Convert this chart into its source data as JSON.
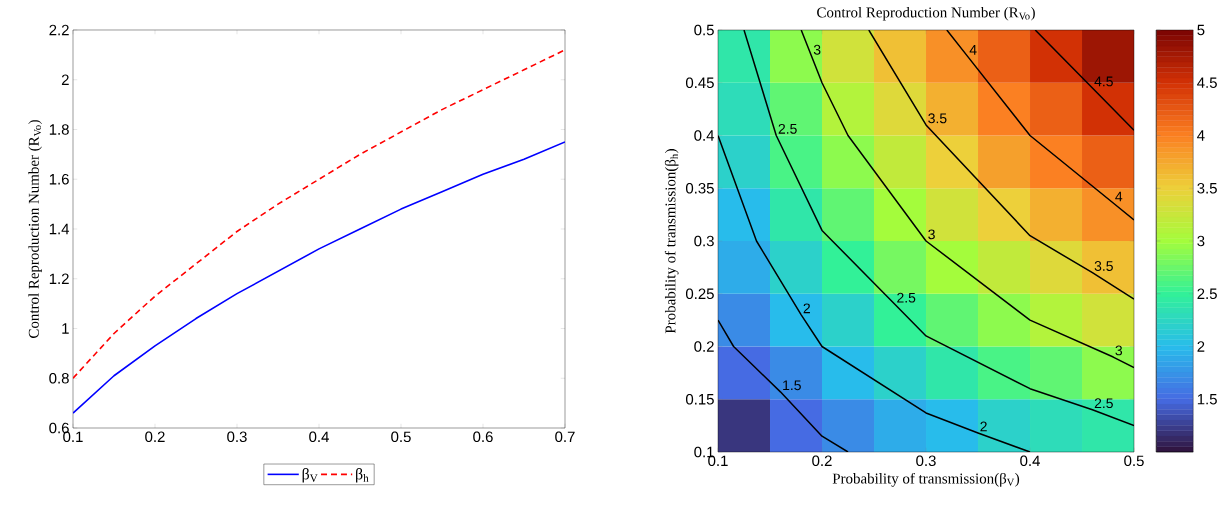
{
  "chart_data": [
    {
      "type": "line",
      "ylabel": "Control Reproduction Number (R$_{Vo}$)",
      "x": [
        0.1,
        0.15,
        0.2,
        0.25,
        0.3,
        0.35,
        0.4,
        0.45,
        0.5,
        0.55,
        0.6,
        0.65,
        0.7
      ],
      "series": [
        {
          "name": "β$_{V}$",
          "color": "#0000ff",
          "line_style": "solid",
          "values": [
            0.66,
            0.81,
            0.93,
            1.04,
            1.14,
            1.23,
            1.32,
            1.4,
            1.48,
            1.55,
            1.62,
            1.68,
            1.75
          ]
        },
        {
          "name": "β$_{h}$",
          "color": "#ff0000",
          "line_style": "dashed",
          "values": [
            0.8,
            0.98,
            1.13,
            1.26,
            1.39,
            1.5,
            1.6,
            1.7,
            1.79,
            1.88,
            1.96,
            2.04,
            2.12
          ]
        }
      ],
      "xlim": [
        0.1,
        0.7
      ],
      "ylim": [
        0.6,
        2.2
      ],
      "xticks": [
        0.1,
        0.2,
        0.3,
        0.4,
        0.5,
        0.6,
        0.7
      ],
      "yticks": [
        0.6,
        0.8,
        1,
        1.2,
        1.4,
        1.6,
        1.8,
        2,
        2.2
      ],
      "legend": "bottom",
      "grid": false
    },
    {
      "type": "heatmap",
      "title": "Control Reproduction Number (R$_{Vo}$)",
      "xlabel": "Probability of transmission(β$_{V}$)",
      "ylabel": "Probability of transmission(β$_{h}$)",
      "x": [
        0.125,
        0.175,
        0.225,
        0.275,
        0.325,
        0.375,
        0.425,
        0.475
      ],
      "y": [
        0.475,
        0.425,
        0.375,
        0.325,
        0.275,
        0.225,
        0.175,
        0.125
      ],
      "cells": [
        [
          2.4,
          2.9,
          3.3,
          3.6,
          3.9,
          4.2,
          4.5,
          4.8
        ],
        [
          2.3,
          2.7,
          3.1,
          3.4,
          3.7,
          4.0,
          4.2,
          4.5
        ],
        [
          2.2,
          2.6,
          2.9,
          3.2,
          3.5,
          3.8,
          4.0,
          4.2
        ],
        [
          2.0,
          2.4,
          2.7,
          3.0,
          3.3,
          3.5,
          3.7,
          3.9
        ],
        [
          1.9,
          2.2,
          2.5,
          2.8,
          3.0,
          3.2,
          3.4,
          3.6
        ],
        [
          1.7,
          2.0,
          2.2,
          2.5,
          2.7,
          2.9,
          3.1,
          3.3
        ],
        [
          1.5,
          1.7,
          2.0,
          2.2,
          2.4,
          2.6,
          2.7,
          2.9
        ],
        [
          1.2,
          1.5,
          1.7,
          1.9,
          2.0,
          2.2,
          2.3,
          2.4
        ]
      ],
      "series": [
        {
          "type": "line",
          "color": "#000000",
          "x": [
            0.1,
            0.115,
            0.16,
            0.2,
            0.225
          ],
          "values": [
            0.225,
            0.2,
            0.157,
            0.115,
            0.1
          ]
        },
        {
          "type": "line",
          "color": "#000000",
          "x": [
            0.1,
            0.137,
            0.18,
            0.2,
            0.3,
            0.35,
            0.4
          ],
          "values": [
            0.4,
            0.3,
            0.23,
            0.2,
            0.137,
            0.118,
            0.1
          ]
        },
        {
          "type": "line",
          "color": "#000000",
          "x": [
            0.125,
            0.156,
            0.2,
            0.27,
            0.3,
            0.4,
            0.46,
            0.5
          ],
          "values": [
            0.5,
            0.4,
            0.31,
            0.24,
            0.21,
            0.16,
            0.14,
            0.125
          ]
        },
        {
          "type": "line",
          "color": "#000000",
          "x": [
            0.18,
            0.19,
            0.2,
            0.225,
            0.3,
            0.4,
            0.48,
            0.5
          ],
          "values": [
            0.5,
            0.475,
            0.45,
            0.4,
            0.3,
            0.225,
            0.19,
            0.18
          ]
        },
        {
          "type": "line",
          "color": "#000000",
          "x": [
            0.245,
            0.3,
            0.4,
            0.46,
            0.5
          ],
          "values": [
            0.5,
            0.41,
            0.305,
            0.27,
            0.245
          ]
        },
        {
          "type": "line",
          "color": "#000000",
          "x": [
            0.32,
            0.34,
            0.4,
            0.48,
            0.5
          ],
          "values": [
            0.5,
            0.475,
            0.4,
            0.336,
            0.32
          ]
        },
        {
          "type": "line",
          "color": "#000000",
          "x": [
            0.405,
            0.46,
            0.5
          ],
          "values": [
            0.5,
            0.445,
            0.405
          ]
        }
      ],
      "annotations": [
        {
          "text": "1.5",
          "x": 0.16,
          "y": 0.157
        },
        {
          "text": "2",
          "x": 0.18,
          "y": 0.23
        },
        {
          "text": "2",
          "x": 0.35,
          "y": 0.118
        },
        {
          "text": "2.5",
          "x": 0.156,
          "y": 0.4
        },
        {
          "text": "2.5",
          "x": 0.27,
          "y": 0.24
        },
        {
          "text": "2.5",
          "x": 0.46,
          "y": 0.14
        },
        {
          "text": "3",
          "x": 0.19,
          "y": 0.475
        },
        {
          "text": "3",
          "x": 0.3,
          "y": 0.3
        },
        {
          "text": "3",
          "x": 0.48,
          "y": 0.19
        },
        {
          "text": "3.5",
          "x": 0.3,
          "y": 0.41
        },
        {
          "text": "3.5",
          "x": 0.46,
          "y": 0.27
        },
        {
          "text": "4",
          "x": 0.34,
          "y": 0.475
        },
        {
          "text": "4",
          "x": 0.48,
          "y": 0.336
        },
        {
          "text": "4.5",
          "x": 0.46,
          "y": 0.445
        }
      ],
      "xlim": [
        0.1,
        0.5
      ],
      "ylim": [
        0.1,
        0.5
      ],
      "xticks": [
        0.1,
        0.2,
        0.3,
        0.4,
        0.5
      ],
      "yticks": [
        0.1,
        0.15,
        0.2,
        0.25,
        0.3,
        0.35,
        0.4,
        0.45,
        0.5
      ],
      "clim": [
        1,
        5
      ],
      "cticks": [
        1.5,
        2,
        2.5,
        3,
        3.5,
        4,
        4.5,
        5
      ],
      "grid": false
    }
  ]
}
